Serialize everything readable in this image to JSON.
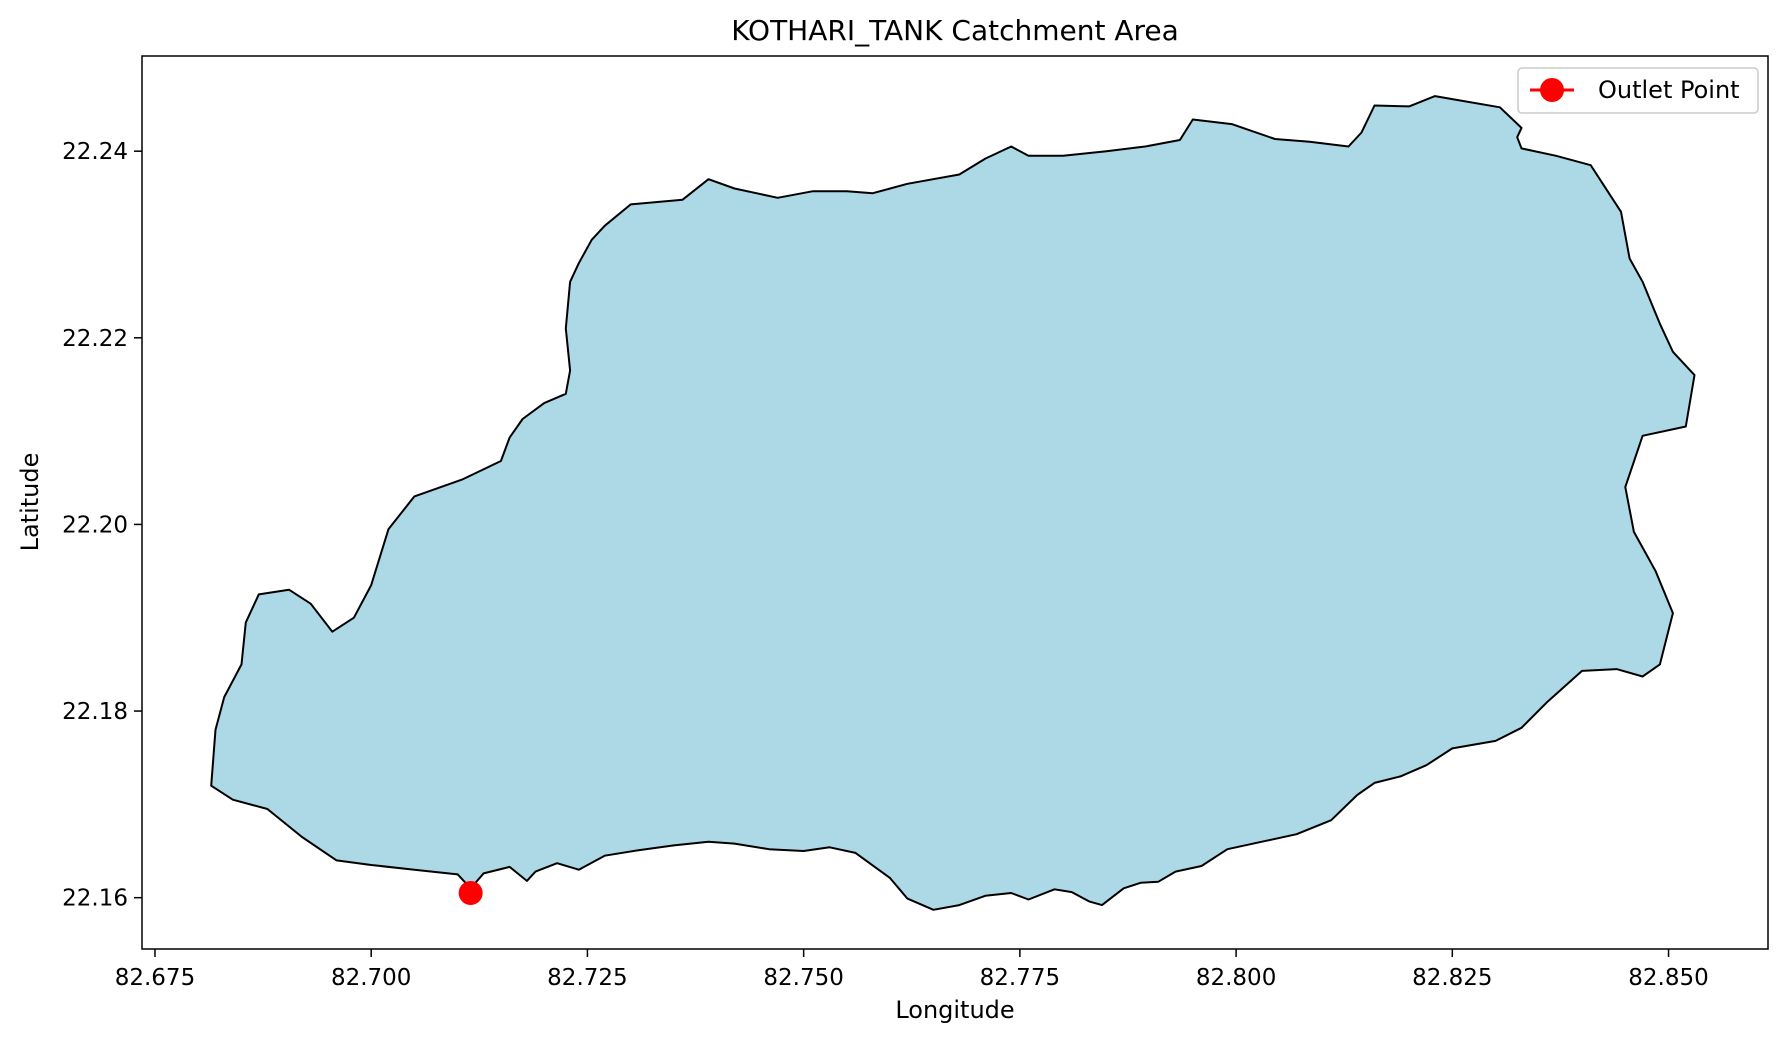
{
  "chart_data": {
    "type": "area",
    "title": "KOTHARI_TANK Catchment Area",
    "xlabel": "Longitude",
    "ylabel": "Latitude",
    "xlim": [
      82.6735,
      82.8615
    ],
    "ylim": [
      22.1545,
      22.2502
    ],
    "xticks": [
      "82.675",
      "82.700",
      "82.725",
      "82.750",
      "82.775",
      "82.800",
      "82.825",
      "82.850"
    ],
    "yticks": [
      "22.16",
      "22.18",
      "22.20",
      "22.22",
      "22.24"
    ],
    "grid": false,
    "legend_position": "top-right",
    "colors": {
      "catchment_fill": "#add8e6",
      "catchment_edge": "#000000",
      "outlet": "#ff0000"
    },
    "series": [
      {
        "kind": "polygon",
        "points": [
          [
            82.7115,
            22.161
          ],
          [
            82.713,
            22.1626
          ],
          [
            82.716,
            22.1633
          ],
          [
            82.718,
            22.1618
          ],
          [
            82.719,
            22.1628
          ],
          [
            82.7215,
            22.1637
          ],
          [
            82.724,
            22.163
          ],
          [
            82.727,
            22.1645
          ],
          [
            82.731,
            22.1651
          ],
          [
            82.735,
            22.1656
          ],
          [
            82.739,
            22.166
          ],
          [
            82.742,
            22.1658
          ],
          [
            82.746,
            22.1652
          ],
          [
            82.75,
            22.165
          ],
          [
            82.753,
            22.1654
          ],
          [
            82.756,
            22.1648
          ],
          [
            82.76,
            22.1621
          ],
          [
            82.762,
            22.1599
          ],
          [
            82.765,
            22.1587
          ],
          [
            82.768,
            22.1592
          ],
          [
            82.771,
            22.1602
          ],
          [
            82.774,
            22.1605
          ],
          [
            82.776,
            22.1598
          ],
          [
            82.779,
            22.1609
          ],
          [
            82.781,
            22.1606
          ],
          [
            82.783,
            22.1596
          ],
          [
            82.7845,
            22.1592
          ],
          [
            82.787,
            22.161
          ],
          [
            82.789,
            22.1616
          ],
          [
            82.791,
            22.1617
          ],
          [
            82.793,
            22.1628
          ],
          [
            82.796,
            22.1634
          ],
          [
            82.799,
            22.1652
          ],
          [
            82.803,
            22.166
          ],
          [
            82.807,
            22.1668
          ],
          [
            82.811,
            22.1683
          ],
          [
            82.814,
            22.171
          ],
          [
            82.816,
            22.1723
          ],
          [
            82.819,
            22.173
          ],
          [
            82.822,
            22.1742
          ],
          [
            82.825,
            22.176
          ],
          [
            82.83,
            22.1768
          ],
          [
            82.833,
            22.1782
          ],
          [
            82.836,
            22.181
          ],
          [
            82.84,
            22.1843
          ],
          [
            82.844,
            22.1845
          ],
          [
            82.847,
            22.1837
          ],
          [
            82.849,
            22.185
          ],
          [
            82.8505,
            22.1905
          ],
          [
            82.8485,
            22.195
          ],
          [
            82.846,
            22.1992
          ],
          [
            82.845,
            22.204
          ],
          [
            82.847,
            22.2095
          ],
          [
            82.852,
            22.2105
          ],
          [
            82.853,
            22.216
          ],
          [
            82.8505,
            22.2185
          ],
          [
            82.849,
            22.2215
          ],
          [
            82.847,
            22.226
          ],
          [
            82.8455,
            22.2285
          ],
          [
            82.8445,
            22.2335
          ],
          [
            82.841,
            22.2385
          ],
          [
            82.837,
            22.2395
          ],
          [
            82.833,
            22.2403
          ],
          [
            82.8325,
            22.2415
          ],
          [
            82.833,
            22.2425
          ],
          [
            82.8305,
            22.2447
          ],
          [
            82.8255,
            22.2455
          ],
          [
            82.823,
            22.2459
          ],
          [
            82.82,
            22.2448
          ],
          [
            82.816,
            22.2449
          ],
          [
            82.8145,
            22.242
          ],
          [
            82.813,
            22.2405
          ],
          [
            82.8085,
            22.241
          ],
          [
            82.8045,
            22.2413
          ],
          [
            82.7995,
            22.2429
          ],
          [
            82.795,
            22.2434
          ],
          [
            82.7935,
            22.2412
          ],
          [
            82.7895,
            22.2405
          ],
          [
            82.785,
            22.24
          ],
          [
            82.78,
            22.2395
          ],
          [
            82.776,
            22.2395
          ],
          [
            82.774,
            22.2405
          ],
          [
            82.771,
            22.2392
          ],
          [
            82.768,
            22.2375
          ],
          [
            82.762,
            22.2365
          ],
          [
            82.758,
            22.2355
          ],
          [
            82.755,
            22.2357
          ],
          [
            82.751,
            22.2357
          ],
          [
            82.747,
            22.235
          ],
          [
            82.742,
            22.236
          ],
          [
            82.739,
            22.237
          ],
          [
            82.736,
            22.2348
          ],
          [
            82.73,
            22.2343
          ],
          [
            82.727,
            22.232
          ],
          [
            82.7255,
            22.2305
          ],
          [
            82.724,
            22.228
          ],
          [
            82.723,
            22.226
          ],
          [
            82.7225,
            22.221
          ],
          [
            82.723,
            22.2165
          ],
          [
            82.7225,
            22.214
          ],
          [
            82.72,
            22.213
          ],
          [
            82.7175,
            22.2113
          ],
          [
            82.716,
            22.2093
          ],
          [
            82.715,
            22.2068
          ],
          [
            82.7105,
            22.2048
          ],
          [
            82.705,
            22.203
          ],
          [
            82.702,
            22.1995
          ],
          [
            82.7,
            22.1935
          ],
          [
            82.698,
            22.19
          ],
          [
            82.6955,
            22.1885
          ],
          [
            82.693,
            22.1915
          ],
          [
            82.6905,
            22.193
          ],
          [
            82.687,
            22.1925
          ],
          [
            82.6855,
            22.1895
          ],
          [
            82.685,
            22.185
          ],
          [
            82.683,
            22.1815
          ],
          [
            82.682,
            22.178
          ],
          [
            82.6815,
            22.172
          ],
          [
            82.684,
            22.1705
          ],
          [
            82.688,
            22.1695
          ],
          [
            82.692,
            22.1665
          ],
          [
            82.696,
            22.164
          ],
          [
            82.7,
            22.1635
          ],
          [
            82.705,
            22.163
          ],
          [
            82.71,
            22.1625
          ]
        ]
      },
      {
        "kind": "point",
        "name": "Outlet Point",
        "x": 82.7115,
        "y": 22.1605
      }
    ]
  }
}
